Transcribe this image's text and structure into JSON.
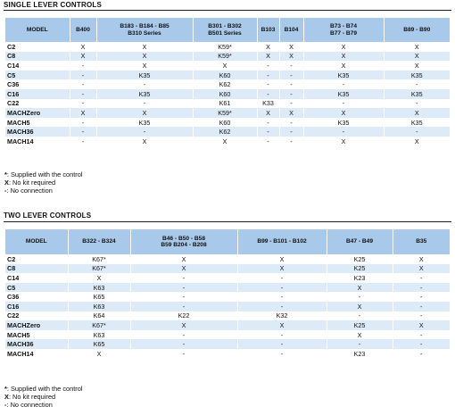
{
  "single": {
    "title": "SINGLE LEVER CONTROLS",
    "headers": [
      "MODEL",
      "B400",
      "B183 - B184 - B85|B310 Series",
      "B301 - B302|B501 Series",
      "B103",
      "B104",
      "B73 - B74|B77 - B79",
      "B89 - B90"
    ],
    "rows": [
      [
        "C2",
        "X",
        "X",
        "K59*",
        "X",
        "X",
        "X",
        "X"
      ],
      [
        "C8",
        "X",
        "X",
        "K59*",
        "X",
        "X",
        "X",
        "X"
      ],
      [
        "C14",
        "-",
        "X",
        "X",
        "-",
        "-",
        "X",
        "X"
      ],
      [
        "C5",
        "-",
        "K35",
        "K60",
        "-",
        "-",
        "K35",
        "K35"
      ],
      [
        "C36",
        "-",
        "-",
        "K62",
        "-",
        "-",
        "-",
        "-"
      ],
      [
        "C16",
        "-",
        "K35",
        "K60",
        "-",
        "-",
        "K35",
        "K35"
      ],
      [
        "C22",
        "-",
        "-",
        "K61",
        "K33",
        "-",
        "-",
        "-"
      ],
      [
        "MACHZero",
        "X",
        "X",
        "K59*",
        "X",
        "X",
        "X",
        "X"
      ],
      [
        "MACH5",
        "-",
        "K35",
        "K60",
        "-",
        "-",
        "K35",
        "K35"
      ],
      [
        "MACH36",
        "-",
        "-",
        "K62",
        "-",
        "-",
        "-",
        "-"
      ],
      [
        "MACH14",
        "-",
        "X",
        "X",
        "-",
        "-",
        "X",
        "X"
      ]
    ],
    "notes": [
      {
        "key": "*",
        "text": ": Supplied with the control"
      },
      {
        "key": "X",
        "text": ": No kit required"
      },
      {
        "key": "-",
        "text": ": No connection"
      }
    ]
  },
  "two": {
    "title": "TWO LEVER CONTROLS",
    "headers": [
      "MODEL",
      "B322 - B324",
      "B46 - B50 - B58|B59 B204 - B208",
      "B99 - B101 - B102",
      "B47 - B49",
      "B35"
    ],
    "rows": [
      [
        "C2",
        "K67*",
        "X",
        "X",
        "K25",
        "X"
      ],
      [
        "C8",
        "K67*",
        "X",
        "X",
        "K25",
        "X"
      ],
      [
        "C14",
        "X",
        "-",
        "-",
        "K23",
        "-"
      ],
      [
        "C5",
        "K63",
        "-",
        "-",
        "X",
        "-"
      ],
      [
        "C36",
        "K65",
        "-",
        "-",
        "-",
        "-"
      ],
      [
        "C16",
        "K63",
        "-",
        "-",
        "X",
        "-"
      ],
      [
        "C22",
        "K64",
        "K22",
        "K32",
        "-",
        "-"
      ],
      [
        "MACHZero",
        "K67*",
        "X",
        "X",
        "K25",
        "X"
      ],
      [
        "MACH5",
        "K63",
        "-",
        "-",
        "X",
        "-"
      ],
      [
        "MACH36",
        "K65",
        "-",
        "-",
        "-",
        "-"
      ],
      [
        "MACH14",
        "X",
        "-",
        "-",
        "K23",
        "-"
      ]
    ],
    "notes": [
      {
        "key": "*",
        "text": ": Supplied with the control"
      },
      {
        "key": "X",
        "text": ": No kit required"
      },
      {
        "key": "-",
        "text": ": No connection"
      }
    ]
  },
  "colors": {
    "header_bg": "#a9c9ea",
    "row_alt_bg": "#ddeaf7",
    "rule": "#1f1f1f"
  }
}
